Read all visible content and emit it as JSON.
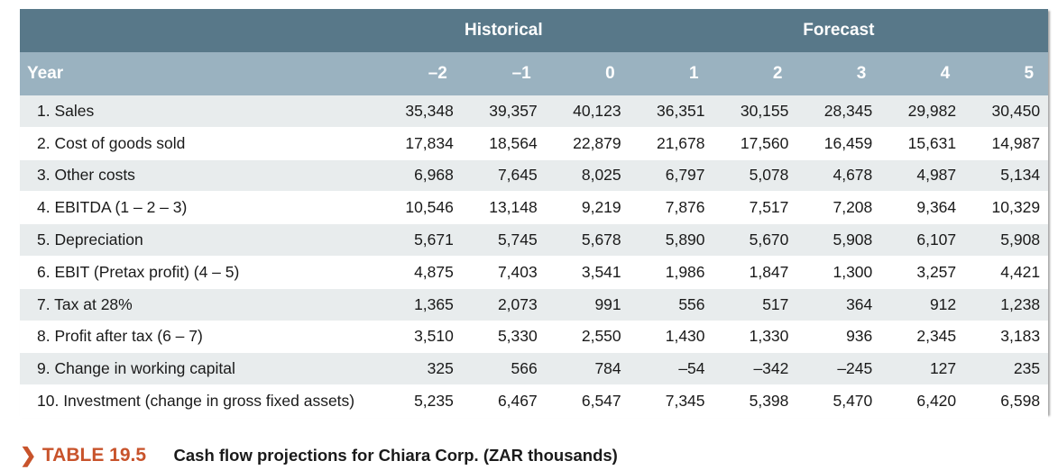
{
  "table": {
    "group_headers": {
      "historical": "Historical",
      "forecast": "Forecast"
    },
    "year_label": "Year",
    "years": [
      "–2",
      "–1",
      "0",
      "1",
      "2",
      "3",
      "4",
      "5"
    ],
    "rows": [
      {
        "label": "1. Sales",
        "values": [
          "35,348",
          "39,357",
          "40,123",
          "36,351",
          "30,155",
          "28,345",
          "29,982",
          "30,450"
        ]
      },
      {
        "label": "2. Cost of goods sold",
        "values": [
          "17,834",
          "18,564",
          "22,879",
          "21,678",
          "17,560",
          "16,459",
          "15,631",
          "14,987"
        ]
      },
      {
        "label": "3. Other costs",
        "values": [
          "6,968",
          "7,645",
          "8,025",
          "6,797",
          "5,078",
          "4,678",
          "4,987",
          "5,134"
        ]
      },
      {
        "label": "4. EBITDA (1 – 2 – 3)",
        "values": [
          "10,546",
          "13,148",
          "9,219",
          "7,876",
          "7,517",
          "7,208",
          "9,364",
          "10,329"
        ]
      },
      {
        "label": "5. Depreciation",
        "values": [
          "5,671",
          "5,745",
          "5,678",
          "5,890",
          "5,670",
          "5,908",
          "6,107",
          "5,908"
        ]
      },
      {
        "label": "6. EBIT (Pretax profit) (4 – 5)",
        "values": [
          "4,875",
          "7,403",
          "3,541",
          "1,986",
          "1,847",
          "1,300",
          "3,257",
          "4,421"
        ]
      },
      {
        "label": "7. Tax at 28%",
        "values": [
          "1,365",
          "2,073",
          "991",
          "556",
          "517",
          "364",
          "912",
          "1,238"
        ]
      },
      {
        "label": "8. Profit after tax (6 – 7)",
        "values": [
          "3,510",
          "5,330",
          "2,550",
          "1,430",
          "1,330",
          "936",
          "2,345",
          "3,183"
        ]
      },
      {
        "label": "9. Change in working capital",
        "values": [
          "325",
          "566",
          "784",
          "–54",
          "–342",
          "–245",
          "127",
          "235"
        ]
      },
      {
        "label": "10. Investment (change in gross fixed assets)",
        "values": [
          "5,235",
          "6,467",
          "6,547",
          "7,345",
          "5,398",
          "5,470",
          "6,420",
          "6,598"
        ]
      }
    ]
  },
  "caption": {
    "arrow": "❯",
    "number": "TABLE 19.5",
    "text": "Cash flow projections for Chiara Corp. (ZAR thousands)"
  },
  "colors": {
    "header_dark": "#587889",
    "header_light": "#9ab2c0",
    "stripe": "#e8eced",
    "accent": "#c8532b"
  }
}
